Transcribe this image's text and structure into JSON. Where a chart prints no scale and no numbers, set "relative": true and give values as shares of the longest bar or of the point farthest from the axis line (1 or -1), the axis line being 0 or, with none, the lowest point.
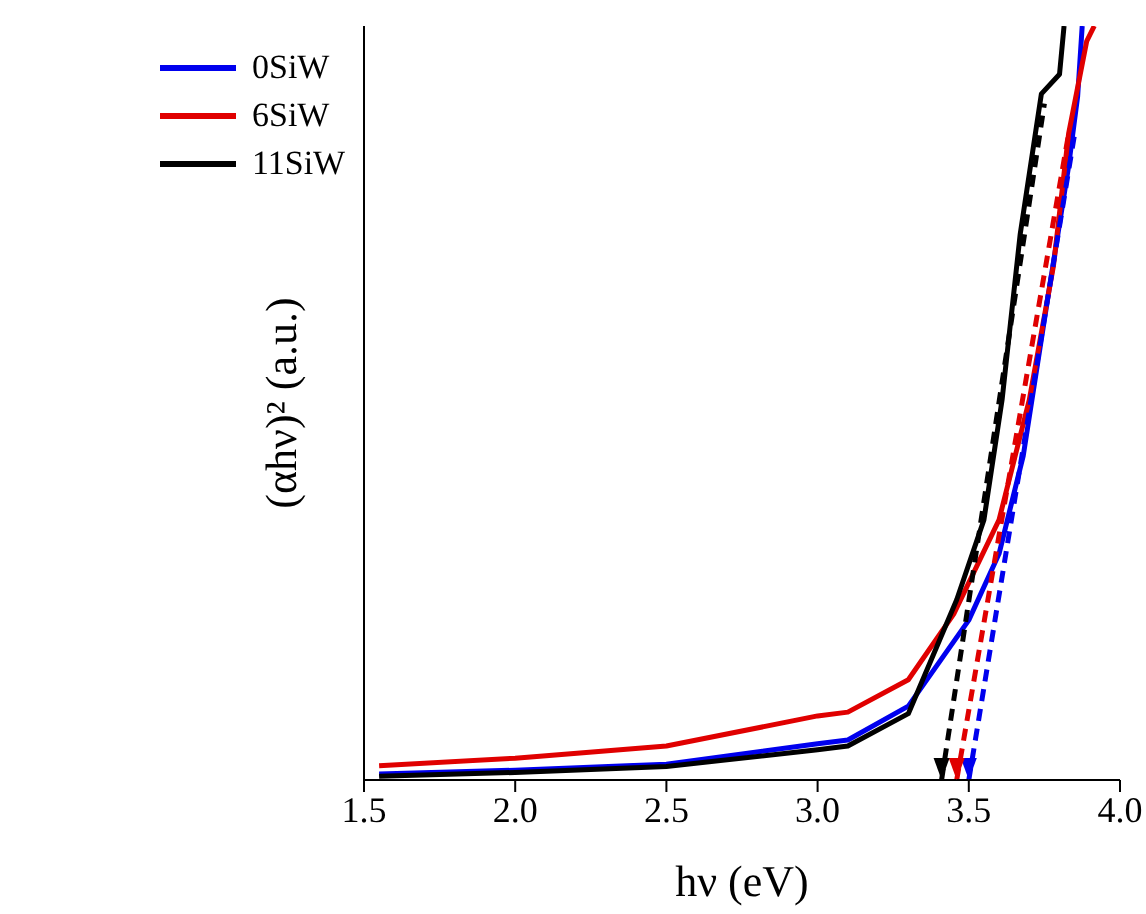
{
  "chart_data": {
    "type": "line",
    "xlabel": "hν (eV)",
    "ylabel": "(αhν)² (a.u.)",
    "relative": true,
    "legend": "top left",
    "line_style": "solid",
    "marker": "none",
    "xlim": [
      1.5,
      4.0
    ],
    "xticks": [
      1.5,
      {
        "value": 2,
        "label": "2.0"
      },
      2.5,
      {
        "value": 3,
        "label": "3.0"
      },
      3.5,
      {
        "value": 4,
        "label": "4.0"
      }
    ],
    "series": [
      {
        "name": "0SiW",
        "color": "#0000ee",
        "x": [
          1.55,
          2.0,
          2.5,
          3.0,
          3.1,
          3.3,
          3.5,
          3.6,
          3.68,
          3.76,
          3.83,
          3.86,
          3.875
        ],
        "values": [
          0.008,
          0.013,
          0.021,
          0.048,
          0.053,
          0.098,
          0.212,
          0.3,
          0.43,
          0.636,
          0.814,
          0.907,
          1
        ]
      },
      {
        "name": "6SiW",
        "color": "#e00000",
        "x": [
          1.55,
          2.0,
          2.5,
          3.0,
          3.1,
          3.3,
          3.45,
          3.6,
          3.7,
          3.78,
          3.83,
          3.89,
          3.915
        ],
        "values": [
          0.019,
          0.029,
          0.045,
          0.085,
          0.09,
          0.133,
          0.22,
          0.345,
          0.504,
          0.682,
          0.857,
          0.98,
          1
        ]
      },
      {
        "name": "11SiW",
        "color": "#000000",
        "x": [
          1.55,
          2.0,
          2.5,
          3.0,
          3.1,
          3.3,
          3.46,
          3.55,
          3.61,
          3.67,
          3.74,
          3.8,
          3.815
        ],
        "values": [
          0.005,
          0.01,
          0.018,
          0.04,
          0.045,
          0.088,
          0.239,
          0.345,
          0.504,
          0.724,
          0.91,
          0.936,
          1
        ]
      },
      {
        "type": "line",
        "line_style": "dashed",
        "color": "#0000ee",
        "x": [
          3.5,
          3.85
        ],
        "values": [
          0,
          0.857
        ]
      },
      {
        "type": "line",
        "line_style": "dashed",
        "color": "#e00000",
        "x": [
          3.46,
          3.83
        ],
        "values": [
          0,
          0.857
        ]
      },
      {
        "type": "line",
        "line_style": "dashed",
        "color": "#000000",
        "x": [
          3.41,
          3.75
        ],
        "values": [
          0,
          0.897
        ]
      }
    ]
  }
}
